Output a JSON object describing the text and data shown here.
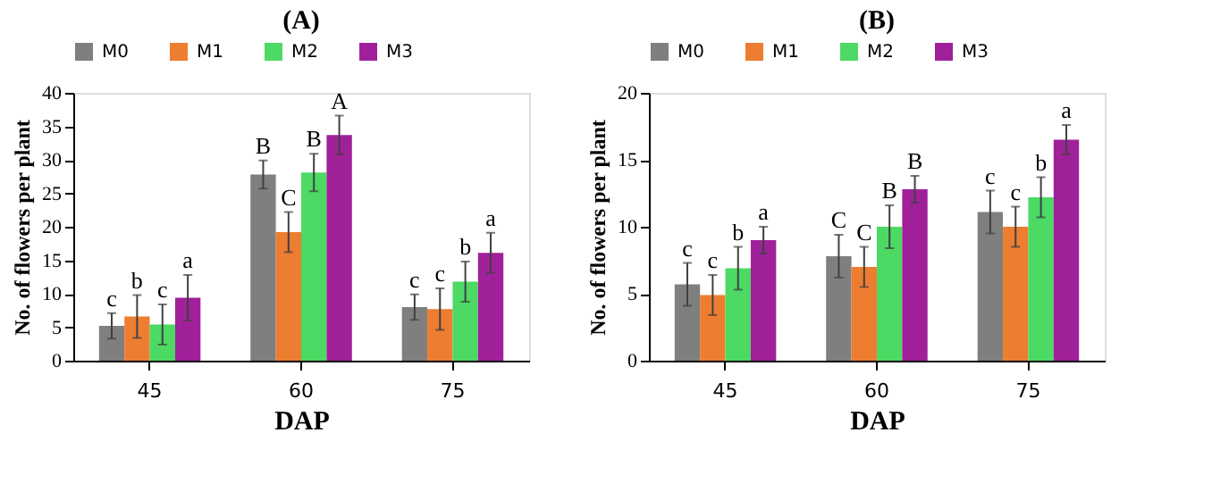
{
  "chart_data": [
    {
      "type": "bar",
      "title": "(A)",
      "xlabel": "DAP",
      "ylabel": "No. of flowers per plant",
      "categories": [
        "45",
        "60",
        "75"
      ],
      "ylim": [
        0,
        40
      ],
      "yticks": [
        0,
        5,
        10,
        15,
        20,
        25,
        30,
        35,
        40
      ],
      "legend": "top",
      "grid": false,
      "series": [
        {
          "name": "M0",
          "color": "#7f7f7f",
          "values": [
            5.2,
            27.8,
            8.0
          ],
          "errors": [
            1.9,
            2.1,
            1.9
          ],
          "value_labels": [
            "c",
            "B",
            "c"
          ]
        },
        {
          "name": "M1",
          "color": "#ed7d31",
          "values": [
            6.6,
            19.2,
            7.7
          ],
          "errors": [
            3.2,
            3.0,
            3.1
          ],
          "value_labels": [
            "b",
            "C",
            "c"
          ]
        },
        {
          "name": "M2",
          "color": "#4cd964",
          "values": [
            5.4,
            28.1,
            11.8
          ],
          "errors": [
            3.0,
            2.8,
            3.0
          ],
          "value_labels": [
            "c",
            "B",
            "b"
          ]
        },
        {
          "name": "M3",
          "color": "#a0209a",
          "values": [
            9.4,
            33.7,
            16.1
          ],
          "errors": [
            3.4,
            2.9,
            3.0
          ],
          "value_labels": [
            "a",
            "A",
            "a"
          ]
        }
      ]
    },
    {
      "type": "bar",
      "title": "(B)",
      "xlabel": "DAP",
      "ylabel": "No. of flowers per plant",
      "categories": [
        "45",
        "60",
        "75"
      ],
      "ylim": [
        0,
        20
      ],
      "yticks": [
        0,
        5,
        10,
        15,
        20
      ],
      "legend": "top",
      "grid": false,
      "series": [
        {
          "name": "M0",
          "color": "#7f7f7f",
          "values": [
            5.7,
            7.8,
            11.1
          ],
          "errors": [
            1.6,
            1.6,
            1.6
          ],
          "value_labels": [
            "c",
            "C",
            "c"
          ]
        },
        {
          "name": "M1",
          "color": "#ed7d31",
          "values": [
            4.9,
            7.0,
            10.0
          ],
          "errors": [
            1.5,
            1.5,
            1.5
          ],
          "value_labels": [
            "c",
            "C",
            "c"
          ]
        },
        {
          "name": "M2",
          "color": "#4cd964",
          "values": [
            6.9,
            10.0,
            12.2
          ],
          "errors": [
            1.6,
            1.6,
            1.5
          ],
          "value_labels": [
            "b",
            "B",
            "b"
          ]
        },
        {
          "name": "M3",
          "color": "#a0209a",
          "values": [
            9.0,
            12.8,
            16.5
          ],
          "errors": [
            1.0,
            1.0,
            1.1
          ],
          "value_labels": [
            "a",
            "B",
            "a"
          ]
        }
      ]
    }
  ]
}
